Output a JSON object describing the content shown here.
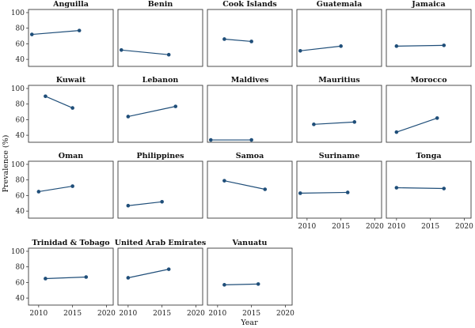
{
  "chart_data": {
    "type": "line",
    "xlabel": "Year",
    "ylabel": "Prevalence (%)",
    "x_ticks": [
      2010,
      2015,
      2020
    ],
    "y_ticks": [
      40,
      60,
      80,
      100
    ],
    "xlim": [
      2008.5,
      2021
    ],
    "ylim": [
      31,
      104
    ],
    "color": "#1f4e79",
    "panels": [
      {
        "title": "Anguilla",
        "x": [
          2009,
          2016
        ],
        "y": [
          72,
          77
        ]
      },
      {
        "title": "Benin",
        "x": [
          2009,
          2016
        ],
        "y": [
          52,
          46
        ]
      },
      {
        "title": "Cook Islands",
        "x": [
          2011,
          2015
        ],
        "y": [
          66,
          63
        ]
      },
      {
        "title": "Guatemala",
        "x": [
          2009,
          2015
        ],
        "y": [
          51,
          57
        ]
      },
      {
        "title": "Jamaica",
        "x": [
          2010,
          2017
        ],
        "y": [
          57,
          58
        ]
      },
      {
        "title": "Kuwait",
        "x": [
          2011,
          2015
        ],
        "y": [
          90,
          75
        ]
      },
      {
        "title": "Lebanon",
        "x": [
          2010,
          2017
        ],
        "y": [
          64,
          77
        ]
      },
      {
        "title": "Maldives",
        "x": [
          2009,
          2015
        ],
        "y": [
          34,
          34
        ]
      },
      {
        "title": "Mauritius",
        "x": [
          2011,
          2017
        ],
        "y": [
          54,
          57
        ]
      },
      {
        "title": "Morocco",
        "x": [
          2010,
          2016
        ],
        "y": [
          44,
          62
        ]
      },
      {
        "title": "Oman",
        "x": [
          2010,
          2015
        ],
        "y": [
          65,
          72
        ]
      },
      {
        "title": "Philippines",
        "x": [
          2010,
          2015
        ],
        "y": [
          47,
          52
        ]
      },
      {
        "title": "Samoa",
        "x": [
          2011,
          2017
        ],
        "y": [
          79,
          68
        ]
      },
      {
        "title": "Suriname",
        "x": [
          2009,
          2016
        ],
        "y": [
          63,
          64
        ]
      },
      {
        "title": "Tonga",
        "x": [
          2010,
          2017
        ],
        "y": [
          70,
          69
        ]
      },
      {
        "title": "Trinidad & Tobago",
        "x": [
          2011,
          2017
        ],
        "y": [
          65,
          67
        ]
      },
      {
        "title": "United Arab Emirates",
        "x": [
          2010,
          2016
        ],
        "y": [
          66,
          77
        ]
      },
      {
        "title": "Vanuatu",
        "x": [
          2011,
          2016
        ],
        "y": [
          57,
          58
        ]
      }
    ]
  }
}
